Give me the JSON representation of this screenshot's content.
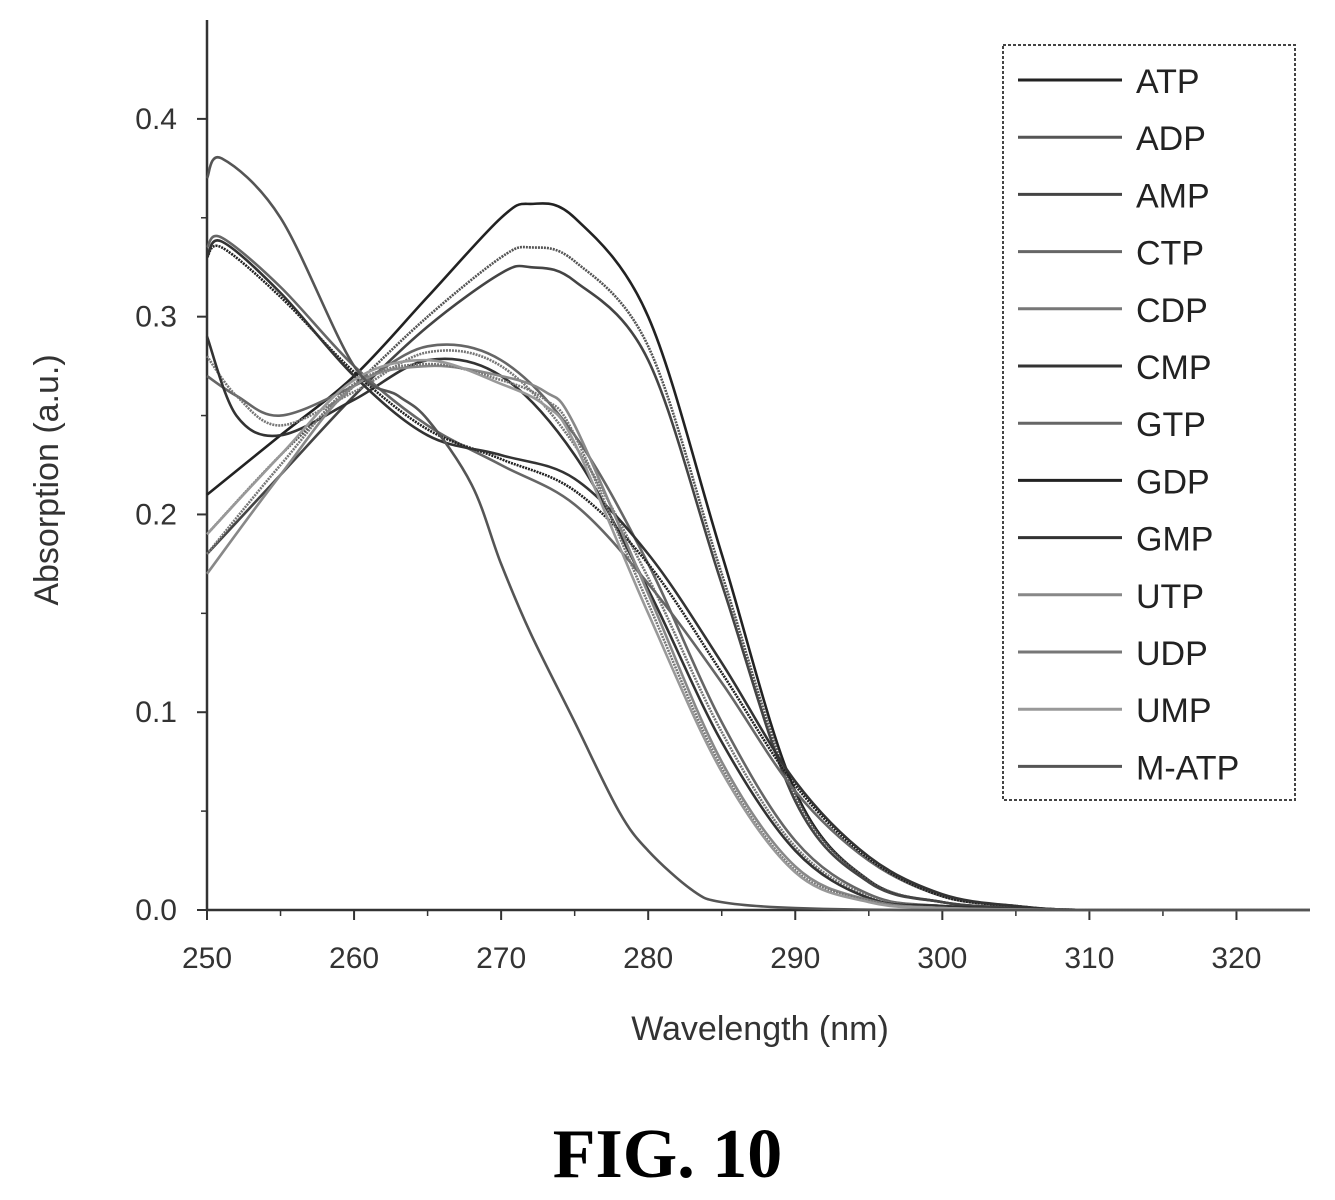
{
  "figure_caption": "FIG. 10",
  "chart_data": {
    "type": "line",
    "xlabel": "Wavelength (nm)",
    "ylabel": "Absorption (a.u.)",
    "xlim": [
      250,
      325
    ],
    "ylim": [
      0,
      0.45
    ],
    "xticks": [
      250,
      260,
      270,
      280,
      290,
      300,
      310,
      320
    ],
    "yticks": [
      0.0,
      0.1,
      0.2,
      0.3,
      0.4
    ],
    "xtick_labels": [
      "250",
      "260",
      "270",
      "280",
      "290",
      "300",
      "310",
      "320"
    ],
    "ytick_labels": [
      "0.0",
      "0.1",
      "0.2",
      "0.3",
      "0.4"
    ],
    "grid": false,
    "legend_position": "top-right",
    "series": [
      {
        "name": "ATP",
        "color": "#222222",
        "x": [
          250,
          255,
          260,
          265,
          270,
          272,
          275,
          280,
          285,
          290,
          295,
          300,
          305,
          310,
          325
        ],
        "y": [
          0.21,
          0.24,
          0.27,
          0.31,
          0.35,
          0.357,
          0.35,
          0.3,
          0.18,
          0.06,
          0.015,
          0.004,
          0.001,
          0.0,
          0.0
        ]
      },
      {
        "name": "ADP",
        "color": "#555555",
        "x": [
          250,
          255,
          260,
          265,
          270,
          272,
          275,
          280,
          285,
          290,
          295,
          300,
          305,
          310,
          325
        ],
        "y": [
          0.19,
          0.23,
          0.265,
          0.3,
          0.33,
          0.335,
          0.328,
          0.285,
          0.17,
          0.058,
          0.015,
          0.004,
          0.001,
          0.0,
          0.0
        ]
      },
      {
        "name": "AMP",
        "color": "#444444",
        "x": [
          250,
          255,
          260,
          265,
          270,
          272,
          275,
          280,
          285,
          290,
          295,
          300,
          305,
          310,
          325
        ],
        "y": [
          0.18,
          0.22,
          0.26,
          0.295,
          0.322,
          0.325,
          0.318,
          0.278,
          0.165,
          0.055,
          0.014,
          0.004,
          0.001,
          0.0,
          0.0
        ]
      },
      {
        "name": "CTP",
        "color": "#666666",
        "x": [
          250,
          252,
          255,
          260,
          265,
          270,
          275,
          280,
          285,
          290,
          295,
          300,
          310,
          325
        ],
        "y": [
          0.27,
          0.26,
          0.25,
          0.265,
          0.285,
          0.278,
          0.24,
          0.175,
          0.095,
          0.035,
          0.008,
          0.002,
          0.0,
          0.0
        ]
      },
      {
        "name": "CDP",
        "color": "#777777",
        "x": [
          250,
          252,
          255,
          260,
          265,
          270,
          275,
          280,
          285,
          290,
          295,
          300,
          310,
          325
        ],
        "y": [
          0.28,
          0.26,
          0.245,
          0.262,
          0.282,
          0.275,
          0.235,
          0.168,
          0.09,
          0.032,
          0.007,
          0.002,
          0.0,
          0.0
        ]
      },
      {
        "name": "CMP",
        "color": "#333333",
        "x": [
          250,
          252,
          255,
          260,
          265,
          270,
          275,
          280,
          285,
          290,
          295,
          300,
          310,
          325
        ],
        "y": [
          0.29,
          0.25,
          0.24,
          0.258,
          0.278,
          0.27,
          0.23,
          0.162,
          0.085,
          0.03,
          0.006,
          0.002,
          0.0,
          0.0
        ]
      },
      {
        "name": "GTP",
        "color": "#666666",
        "x": [
          250,
          251,
          255,
          260,
          265,
          270,
          275,
          280,
          285,
          290,
          295,
          300,
          305,
          310,
          325
        ],
        "y": [
          0.335,
          0.34,
          0.315,
          0.275,
          0.245,
          0.225,
          0.205,
          0.165,
          0.115,
          0.06,
          0.025,
          0.007,
          0.002,
          0.0,
          0.0
        ]
      },
      {
        "name": "GDP",
        "color": "#222222",
        "x": [
          250,
          251,
          255,
          260,
          265,
          270,
          275,
          280,
          285,
          290,
          295,
          300,
          305,
          310,
          325
        ],
        "y": [
          0.33,
          0.335,
          0.31,
          0.272,
          0.243,
          0.228,
          0.212,
          0.175,
          0.12,
          0.063,
          0.026,
          0.007,
          0.002,
          0.0,
          0.0
        ]
      },
      {
        "name": "GMP",
        "color": "#333333",
        "x": [
          250,
          251,
          255,
          260,
          265,
          270,
          275,
          280,
          285,
          290,
          295,
          300,
          305,
          310,
          325
        ],
        "y": [
          0.33,
          0.338,
          0.312,
          0.27,
          0.24,
          0.23,
          0.218,
          0.18,
          0.125,
          0.065,
          0.027,
          0.008,
          0.002,
          0.0,
          0.0
        ]
      },
      {
        "name": "UTP",
        "color": "#888888",
        "x": [
          250,
          255,
          260,
          265,
          270,
          273,
          275,
          280,
          285,
          290,
          295,
          300,
          310,
          325
        ],
        "y": [
          0.17,
          0.22,
          0.265,
          0.275,
          0.27,
          0.262,
          0.245,
          0.16,
          0.075,
          0.022,
          0.005,
          0.001,
          0.0,
          0.0
        ]
      },
      {
        "name": "UDP",
        "color": "#777777",
        "x": [
          250,
          255,
          260,
          265,
          270,
          273,
          275,
          280,
          285,
          290,
          295,
          300,
          310,
          325
        ],
        "y": [
          0.18,
          0.225,
          0.266,
          0.276,
          0.268,
          0.258,
          0.24,
          0.155,
          0.072,
          0.02,
          0.005,
          0.001,
          0.0,
          0.0
        ]
      },
      {
        "name": "UMP",
        "color": "#999999",
        "x": [
          250,
          255,
          260,
          265,
          270,
          273,
          275,
          280,
          285,
          290,
          295,
          300,
          310,
          325
        ],
        "y": [
          0.19,
          0.23,
          0.268,
          0.278,
          0.266,
          0.255,
          0.236,
          0.15,
          0.07,
          0.019,
          0.004,
          0.001,
          0.0,
          0.0
        ]
      },
      {
        "name": "M-ATP",
        "color": "#555555",
        "x": [
          250,
          251,
          255,
          260,
          263,
          265,
          268,
          270,
          272,
          275,
          278,
          280,
          283,
          285,
          290,
          300,
          325
        ],
        "y": [
          0.37,
          0.38,
          0.35,
          0.275,
          0.26,
          0.248,
          0.215,
          0.175,
          0.14,
          0.095,
          0.05,
          0.03,
          0.01,
          0.004,
          0.001,
          0.0,
          0.0
        ]
      }
    ]
  }
}
